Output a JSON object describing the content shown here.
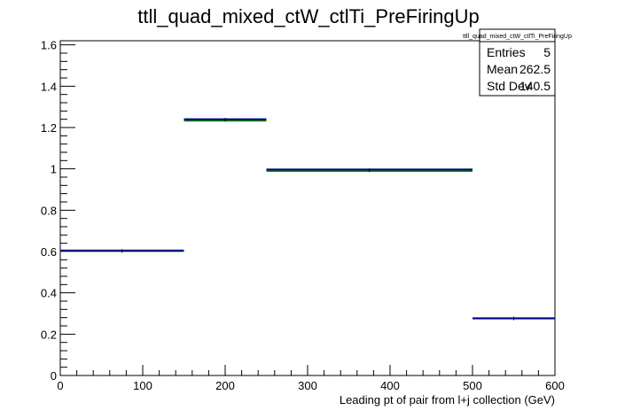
{
  "chart_data": {
    "type": "histogram",
    "title": "ttll_quad_mixed_ctW_ctlTi_PreFiringUp",
    "xlabel": "Leading pt of pair from l+j collection (GeV)",
    "ylabel": "",
    "xlim": [
      0,
      600
    ],
    "ylim": [
      0,
      1.62
    ],
    "x_ticks": [
      "0",
      "100",
      "200",
      "300",
      "400",
      "500",
      "600"
    ],
    "y_ticks": [
      "0",
      "0.2",
      "0.4",
      "0.6",
      "0.8",
      "1",
      "1.2",
      "1.4",
      "1.6"
    ],
    "bins": [
      {
        "x_low": 0,
        "x_high": 150,
        "value": 0.603
      },
      {
        "x_low": 150,
        "x_high": 250,
        "value": 1.238
      },
      {
        "x_low": 250,
        "x_high": 500,
        "value": 0.993
      },
      {
        "x_low": 500,
        "x_high": 600,
        "value": 0.276
      }
    ],
    "series": [
      {
        "color": "#00008b",
        "values": [
          0.605,
          1.24,
          0.997,
          0.277
        ]
      },
      {
        "color": "#008000",
        "values": [
          0.602,
          1.233,
          0.99,
          0.276
        ]
      }
    ],
    "stats_box": {
      "title": "ttll_quad_mixed_ctW_ctlTi_PreFiringUp",
      "rows": [
        {
          "label": "Entries",
          "value": "5"
        },
        {
          "label": "Mean",
          "value": "262.5"
        },
        {
          "label": "Std Dev",
          "value": "140.5"
        }
      ]
    }
  }
}
